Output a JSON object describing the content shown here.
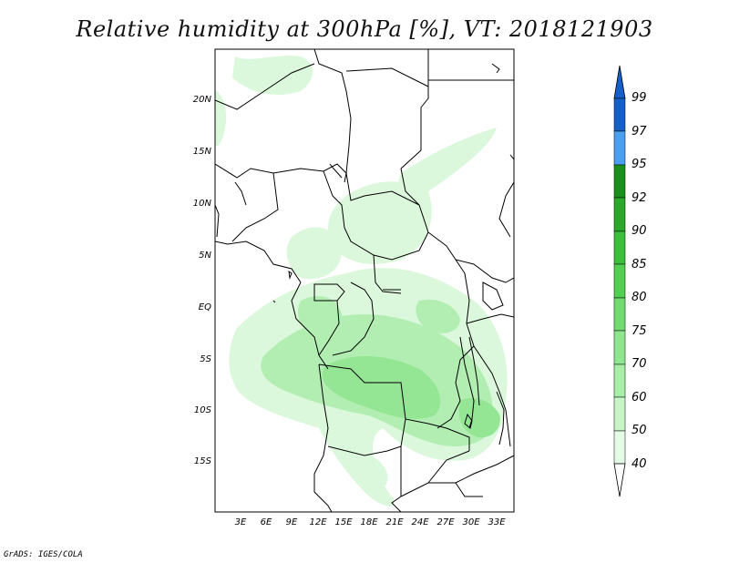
{
  "title": "Relative humidity at 300hPa [%], VT: 2018121903",
  "credit": "GrADS: IGES/COLA",
  "lat_labels": [
    "20N",
    "15N",
    "10N",
    "5N",
    "EQ",
    "5S",
    "10S",
    "15S"
  ],
  "lon_labels": [
    "3E",
    "6E",
    "9E",
    "12E",
    "15E",
    "18E",
    "21E",
    "24E",
    "27E",
    "30E",
    "33E"
  ],
  "colorbar": {
    "levels": [
      "40",
      "50",
      "60",
      "70",
      "75",
      "80",
      "85",
      "90",
      "92",
      "95",
      "97",
      "99"
    ],
    "colors": [
      "#e6fbe6",
      "#c8f5c8",
      "#a8eda8",
      "#8fe68f",
      "#70dc70",
      "#52d052",
      "#3cc03c",
      "#2aa82a",
      "#1a901a",
      "#4a9ff0",
      "#2a7ee0",
      "#1560c8"
    ]
  },
  "field_colors": {
    "light": "#dcf8dc",
    "mid": "#b2eeb2",
    "dark": "#94e694"
  }
}
